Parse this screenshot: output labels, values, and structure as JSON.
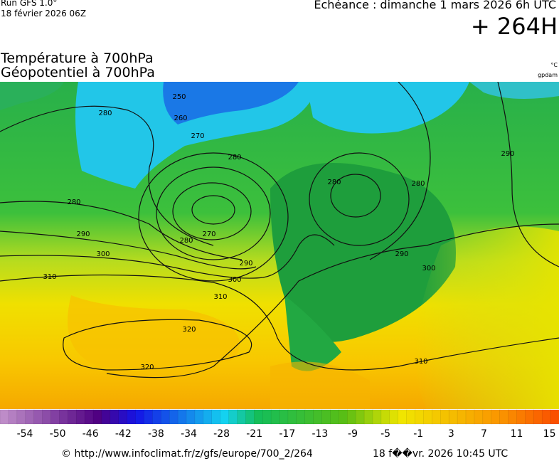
{
  "header": {
    "run": "Run GFS 1.0°",
    "run_date": "18 février 2026 06Z",
    "valid": "Echéance : dimanche 1 mars 2026 6h UTC",
    "lead": "+ 264H",
    "title_line1": "Température à 700hPa",
    "title_line2": "Géopotentiel à 700hPa",
    "unit_temp": "°C",
    "unit_geo": "gpdam"
  },
  "contour_labels": [
    "280",
    "280",
    "290",
    "300",
    "310",
    "250",
    "260",
    "270",
    "280",
    "270",
    "280",
    "290",
    "300",
    "310",
    "320",
    "320",
    "280",
    "280",
    "290",
    "290",
    "300",
    "310"
  ],
  "scale_labels": [
    -54,
    -50,
    -46,
    -42,
    -38,
    -34,
    -28,
    -21,
    -17,
    -13,
    -9,
    -5,
    -1,
    3,
    7,
    11,
    15
  ],
  "footer": {
    "source": "© http://www.infoclimat.fr/z/gfs/europe/700_2/264",
    "generated": "18 f��vr. 2026 10:45 UTC"
  }
}
